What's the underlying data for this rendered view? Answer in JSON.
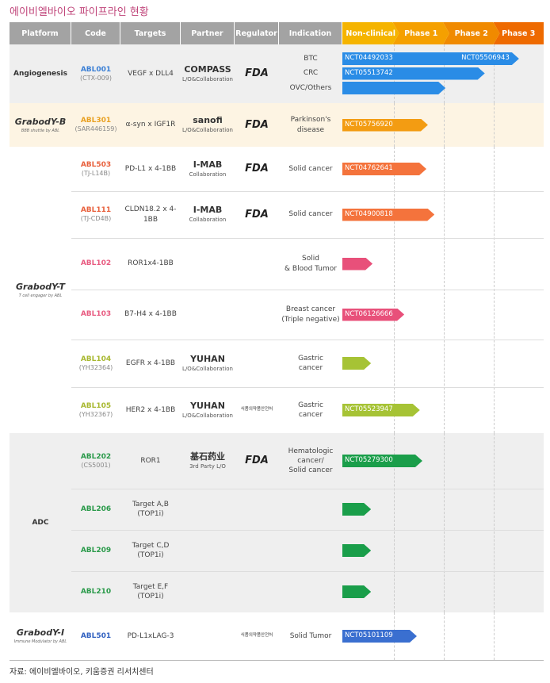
{
  "title": "에이비엘바이오 파이프라인 현황",
  "header": [
    "Platform",
    "Code",
    "Targets",
    "Partner",
    "Regulator",
    "Indication"
  ],
  "phases": [
    "Non-clinical",
    "Phase 1",
    "Phase 2",
    "Phase 3"
  ],
  "groups": [
    {
      "platform": "Angiogenesis",
      "rows": [
        {
          "code": "ABL001",
          "code_sub": "(CTX-009)",
          "color": "#3a7fd5",
          "targets": "VEGF x DLL4",
          "partner": {
            "name": "COMPASS",
            "note": "L/O&Collaboration"
          },
          "regulator": "FDA",
          "indication": [
            "BTC",
            "CRC",
            "OVC/Others"
          ],
          "bar_color": "#2a8ce6",
          "bars": [
            {
              "labels": [
                "NCT04492033",
                "NCT05506943"
              ],
              "progress": 3.51
            },
            {
              "labels": [
                "NCT05513742"
              ],
              "progress": 2.83
            },
            {
              "labels": [],
              "progress": 2.05
            }
          ]
        }
      ]
    },
    {
      "platform": "GrabodY-B",
      "platform_sub": "BBB shuttle by ABL",
      "rows": [
        {
          "code": "ABL301",
          "code_sub": "(SAR446159)",
          "color": "#e8a020",
          "targets": "α-syn x IGF1R",
          "partner": {
            "name": "sanofi",
            "note": "L/O&Collaboration"
          },
          "regulator": "FDA",
          "indication": [
            "Parkinson's",
            "disease"
          ],
          "bar_color": "#f39c12",
          "bars": [
            {
              "labels": [
                "NCT05756920"
              ],
              "progress": 1.7
            }
          ]
        }
      ]
    },
    {
      "platform": "GrabodY-T",
      "platform_sub": "T cell engager by ABL",
      "rows": [
        {
          "code": "ABL503",
          "code_sub": "(TJ-L14B)",
          "color": "#e8603c",
          "targets": "PD-L1 x 4-1BB",
          "partner": {
            "name": "I-MAB",
            "note": "Collaboration"
          },
          "regulator": "FDA",
          "indication": [
            "Solid cancer"
          ],
          "bar_color": "#f4733c",
          "bars": [
            {
              "labels": [
                "NCT04762641"
              ],
              "progress": 1.67
            }
          ]
        },
        {
          "code": "ABL111",
          "code_sub": "(TJ-CD4B)",
          "color": "#e8603c",
          "targets": "CLDN18.2 x 4-1BB",
          "partner": {
            "name": "I-MAB",
            "note": "Collaboration"
          },
          "regulator": "FDA",
          "indication": [
            "Solid cancer"
          ],
          "bar_color": "#f4733c",
          "bars": [
            {
              "labels": [
                "NCT04900818"
              ],
              "progress": 1.83
            }
          ]
        },
        {
          "code": "ABL102",
          "color": "#e85a80",
          "targets": "ROR1x4-1BB",
          "indication": [
            "Solid",
            "& Blood Tumor"
          ],
          "bar_color": "#e8507a",
          "bars": [
            {
              "labels": [],
              "progress": 0.6
            }
          ]
        },
        {
          "code": "ABL103",
          "color": "#e85a80",
          "targets": "B7-H4 x 4-1BB",
          "indication": [
            "Breast cancer",
            "(Triple negative)"
          ],
          "bar_color": "#e8507a",
          "bars": [
            {
              "labels": [
                "NCT06126666"
              ],
              "progress": 1.23
            }
          ]
        },
        {
          "code": "ABL104",
          "code_sub": "(YH32364)",
          "color": "#a8b830",
          "targets": "EGFR x 4-1BB",
          "partner": {
            "name": "YUHAN",
            "note": "L/O&Collaboration"
          },
          "indication": [
            "Gastric",
            "cancer"
          ],
          "bar_color": "#a6c335",
          "bars": [
            {
              "labels": [],
              "progress": 0.57
            }
          ]
        },
        {
          "code": "ABL105",
          "code_sub": "(YH32367)",
          "color": "#a8b830",
          "targets": "HER2 x 4-1BB",
          "partner": {
            "name": "YUHAN",
            "note": "L/O&Collaboration"
          },
          "regulator": "식품의약품안전처",
          "indication": [
            "Gastric",
            "cancer"
          ],
          "bar_color": "#a6c335",
          "bars": [
            {
              "labels": [
                "NCT05523947"
              ],
              "progress": 1.54
            }
          ]
        }
      ]
    },
    {
      "platform": "ADC",
      "rows": [
        {
          "code": "ABL202",
          "code_sub": "(CS5001)",
          "color": "#2a9a4a",
          "targets": "ROR1",
          "partner": {
            "name": "基石药业",
            "note": "3rd Party L/O"
          },
          "regulator": "FDA",
          "indication": [
            "Hematologic",
            "cancer/",
            "Solid cancer"
          ],
          "bar_color": "#1a9e4a",
          "bars": [
            {
              "labels": [
                "NCT05279300"
              ],
              "progress": 1.59
            }
          ]
        },
        {
          "code": "ABL206",
          "color": "#2a9a4a",
          "targets": [
            "Target A,B",
            "(TOP1i)"
          ],
          "bar_color": "#1a9e4a",
          "bars": [
            {
              "labels": [],
              "progress": 0.57
            }
          ]
        },
        {
          "code": "ABL209",
          "color": "#2a9a4a",
          "targets": [
            "Target C,D",
            "(TOP1i)"
          ],
          "bar_color": "#1a9e4a",
          "bars": [
            {
              "labels": [],
              "progress": 0.57
            }
          ]
        },
        {
          "code": "ABL210",
          "color": "#2a9a4a",
          "targets": [
            "Target E,F",
            "(TOP1i)"
          ],
          "bar_color": "#1a9e4a",
          "bars": [
            {
              "labels": [],
              "progress": 0.57
            }
          ]
        }
      ]
    },
    {
      "platform": "GrabodY-I",
      "platform_sub": "Immune Modulator by ABL",
      "rows": [
        {
          "code": "ABL501",
          "color": "#3060c0",
          "targets": "PD-L1xLAG-3",
          "regulator": "식품의약품안전처",
          "indication": [
            "Solid Tumor"
          ],
          "bar_color": "#3a6fd0",
          "bars": [
            {
              "labels": [
                "NCT05101109"
              ],
              "progress": 1.48
            }
          ]
        }
      ]
    }
  ],
  "source": "자료: 에이비엘바이오, 키움증권 리서치센터"
}
